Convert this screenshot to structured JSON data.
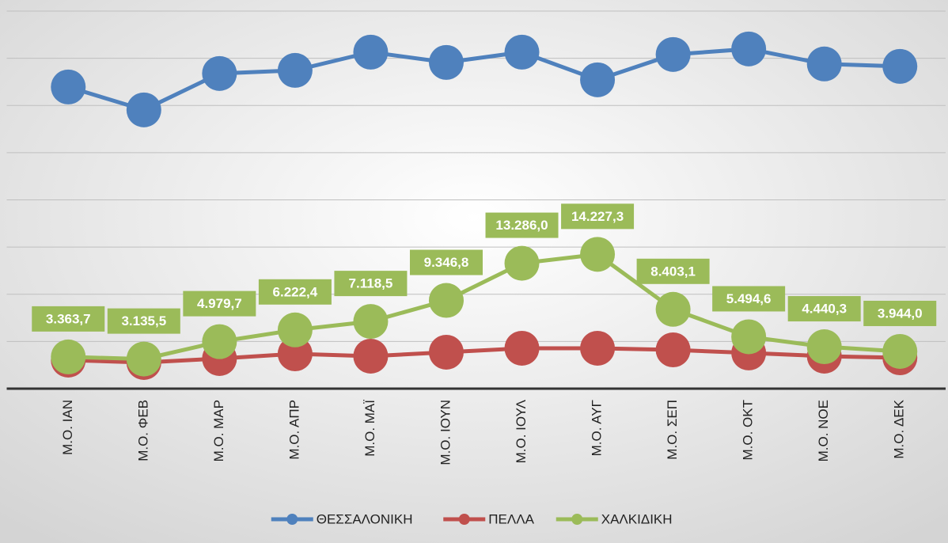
{
  "chart_data": {
    "type": "line",
    "categories": [
      "Μ.Ο. ΙΑΝ",
      "Μ.Ο. ΦΕΒ",
      "Μ.Ο. ΜΑΡ",
      "Μ.Ο. ΑΠΡ",
      "Μ.Ο. ΜΑΪ",
      "Μ.Ο. ΙΟΥΝ",
      "Μ.Ο. ΙΟΥΛ",
      "Μ.Ο. ΑΥΓ",
      "Μ.Ο. ΣΕΠ",
      "Μ.Ο. ΟΚΤ",
      "Μ.Ο. ΝΟΕ",
      "Μ.Ο. ΔΕΚ"
    ],
    "series": [
      {
        "name": "ΘΕΣΣΑΛΟΝΙΚΗ",
        "color": "#4f81bd",
        "values": [
          31960,
          29530,
          33390,
          33720,
          35650,
          34560,
          35650,
          32720,
          35400,
          35990,
          34400,
          34140
        ]
      },
      {
        "name": "ΠΕΛΛΑ",
        "color": "#c0504d",
        "values": [
          3020,
          2770,
          3190,
          3690,
          3440,
          3860,
          4280,
          4280,
          4110,
          3780,
          3440,
          3270
        ]
      },
      {
        "name": "ΧΑΛΚΙΔΙΚΗ",
        "color": "#9bbb59",
        "values": [
          3363.7,
          3135.5,
          4979.7,
          6222.4,
          7118.5,
          9346.8,
          13286.0,
          14227.3,
          8403.1,
          5494.6,
          4440.3,
          3944.0
        ],
        "value_labels": [
          "3.363,7",
          "3.135,5",
          "4.979,7",
          "6.222,4",
          "7.118,5",
          "9.346,8",
          "13.286,0",
          "14.227,3",
          "8.403,1",
          "5.494,6",
          "4.440,3",
          "3.944,0"
        ]
      }
    ],
    "ylim": [
      0,
      40000
    ],
    "yticks": [
      0,
      5000,
      10000,
      15000,
      20000,
      25000,
      30000,
      35000,
      40000
    ],
    "grid": true,
    "legend": "bottom"
  }
}
